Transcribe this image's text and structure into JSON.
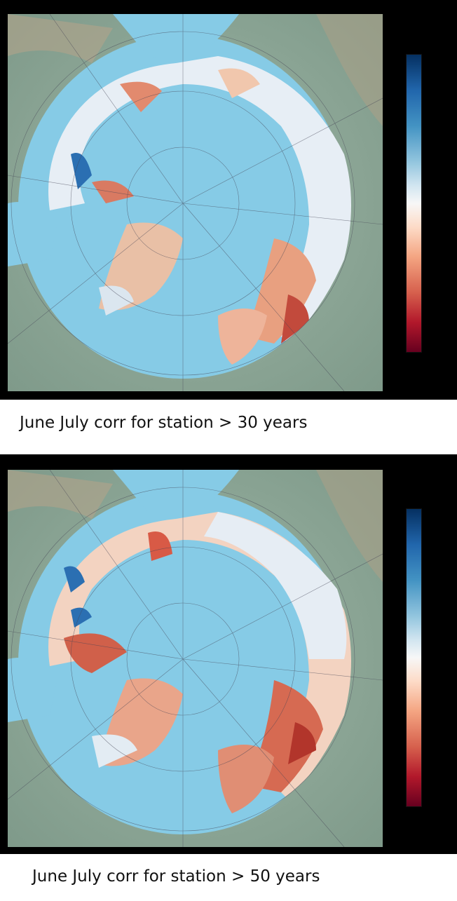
{
  "figures": [
    {
      "caption": "June July corr for station > 30 years",
      "colorbar": {
        "palette": "red-white-blue diverging",
        "top_color": "#053061",
        "mid_color": "#f7f7f7",
        "bottom_color": "#67001f"
      }
    },
    {
      "caption": "June July corr for station > 50 years",
      "colorbar": {
        "palette": "red-white-blue diverging",
        "top_color": "#053061",
        "mid_color": "#f7f7f7",
        "bottom_color": "#67001f"
      }
    }
  ],
  "colors": {
    "ocean": "#86cbe6",
    "land": "#8fa89a",
    "background": "#000000"
  }
}
